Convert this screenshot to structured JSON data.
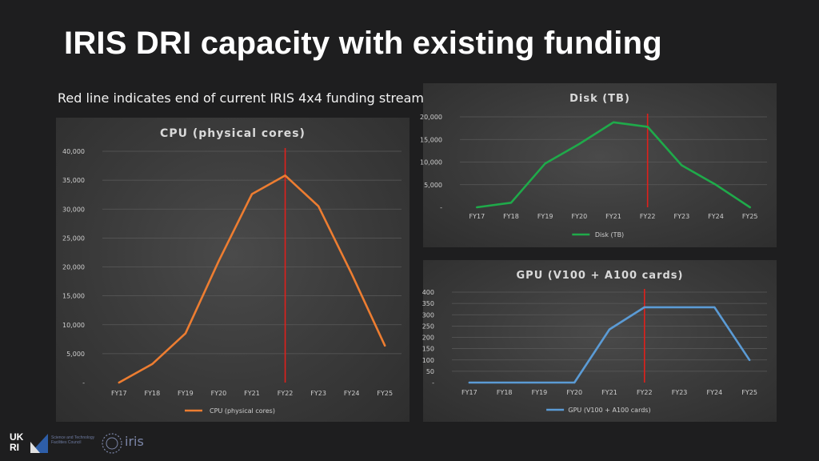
{
  "slide": {
    "title": "IRIS DRI capacity with existing funding",
    "subtitle": "Red line indicates end of current IRIS 4x4 funding stream"
  },
  "colors": {
    "cpu": "#ed7d31",
    "disk": "#1faa4a",
    "gpu": "#5b9bd5",
    "funding_line": "#e0201b"
  },
  "chart_data": [
    {
      "id": "cpu",
      "type": "line",
      "title": "CPU (physical cores)",
      "categories": [
        "FY17",
        "FY18",
        "FY19",
        "FY20",
        "FY21",
        "FY22",
        "FY23",
        "FY24",
        "FY25"
      ],
      "series": [
        {
          "name": "CPU (physical cores)",
          "values": [
            0,
            3200,
            8500,
            21000,
            32600,
            35800,
            30500,
            18800,
            6400
          ]
        }
      ],
      "ylim": [
        0,
        40000
      ],
      "yticks": [
        0,
        5000,
        10000,
        15000,
        20000,
        25000,
        30000,
        35000,
        40000
      ],
      "ytick_labels": [
        "-",
        "5,000",
        "10,000",
        "15,000",
        "20,000",
        "25,000",
        "30,000",
        "35,000",
        "40,000"
      ],
      "funding_end_category": "FY22",
      "legend": "bottom",
      "grid": true
    },
    {
      "id": "disk",
      "type": "line",
      "title": "Disk (TB)",
      "categories": [
        "FY17",
        "FY18",
        "FY19",
        "FY20",
        "FY21",
        "FY22",
        "FY23",
        "FY24",
        "FY25"
      ],
      "series": [
        {
          "name": "Disk (TB)",
          "values": [
            0,
            1000,
            9700,
            14000,
            18800,
            17800,
            9300,
            5000,
            0
          ]
        }
      ],
      "ylim": [
        0,
        20000
      ],
      "yticks": [
        0,
        5000,
        10000,
        15000,
        20000
      ],
      "ytick_labels": [
        "-",
        "5,000",
        "10,000",
        "15,000",
        "20,000"
      ],
      "funding_end_category": "FY22",
      "legend": "bottom",
      "grid": true
    },
    {
      "id": "gpu",
      "type": "line",
      "title": "GPU (V100 + A100 cards)",
      "categories": [
        "FY17",
        "FY18",
        "FY19",
        "FY20",
        "FY21",
        "FY22",
        "FY23",
        "FY24",
        "FY25"
      ],
      "series": [
        {
          "name": "GPU (V100 + A100 cards)",
          "values": [
            0,
            0,
            0,
            0,
            235,
            333,
            333,
            333,
            100
          ]
        }
      ],
      "ylim": [
        0,
        400
      ],
      "yticks": [
        0,
        50,
        100,
        150,
        200,
        250,
        300,
        350,
        400
      ],
      "ytick_labels": [
        "-",
        "50",
        "100",
        "150",
        "200",
        "250",
        "300",
        "350",
        "400"
      ],
      "funding_end_category": "FY22",
      "legend": "bottom",
      "grid": true
    }
  ],
  "footer": {
    "ukri_logo": "UKRI",
    "ukri_logo_line1": "UK",
    "ukri_logo_line2": "RI",
    "ukri_tagline": "Science and Technology Facilities Council",
    "iris_logo": "iris"
  }
}
